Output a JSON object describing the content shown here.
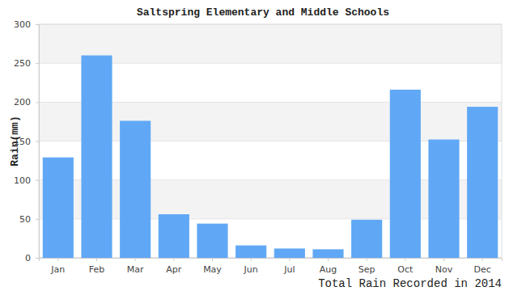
{
  "chart_data": {
    "type": "bar",
    "title": "Saltspring Elementary and Middle Schools",
    "x_label": "Total Rain Recorded in 2014",
    "y_label": "Rain(mm)",
    "categories": [
      "Jan",
      "Feb",
      "Mar",
      "Apr",
      "May",
      "Jun",
      "Jul",
      "Aug",
      "Sep",
      "Oct",
      "Nov",
      "Dec"
    ],
    "values": [
      129,
      260,
      176,
      56,
      44,
      16,
      12,
      11,
      49,
      216,
      152,
      194
    ],
    "color": "#60a8f5",
    "ylim": [
      0,
      300
    ],
    "yticks": [
      0,
      50,
      100,
      150,
      200,
      250,
      300
    ],
    "grid": true
  }
}
